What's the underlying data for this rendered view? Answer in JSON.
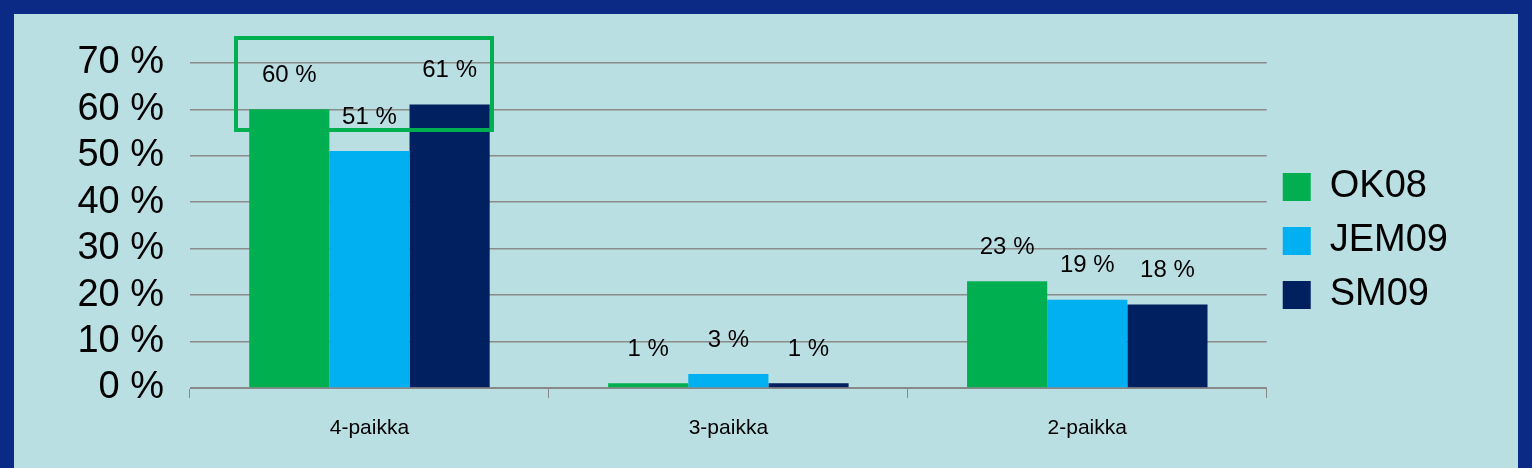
{
  "chart_data": {
    "type": "bar",
    "categories": [
      "4-paikka",
      "3-paikka",
      "2-paikka"
    ],
    "series": [
      {
        "name": "OK08",
        "color": "#00b050",
        "values": [
          60,
          1,
          23
        ],
        "value_labels": [
          "60 %",
          "1 %",
          "23 %"
        ]
      },
      {
        "name": "JEM09",
        "color": "#00b0f0",
        "values": [
          51,
          3,
          19
        ],
        "value_labels": [
          "51 %",
          "3 %",
          "19 %"
        ]
      },
      {
        "name": "SM09",
        "color": "#002060",
        "values": [
          61,
          1,
          18
        ],
        "value_labels": [
          "61 %",
          "1 %",
          "18 %"
        ]
      }
    ],
    "ylim": [
      0,
      70
    ],
    "yticks": [
      {
        "value": 0,
        "label": "0 %"
      },
      {
        "value": 10,
        "label": "10 %"
      },
      {
        "value": 20,
        "label": "20 %"
      },
      {
        "value": 30,
        "label": "30 %"
      },
      {
        "value": 40,
        "label": "40 %"
      },
      {
        "value": 50,
        "label": "50 %"
      },
      {
        "value": 60,
        "label": "60 %"
      },
      {
        "value": 70,
        "label": "70 %"
      }
    ],
    "grid": "y",
    "legend": "right"
  }
}
